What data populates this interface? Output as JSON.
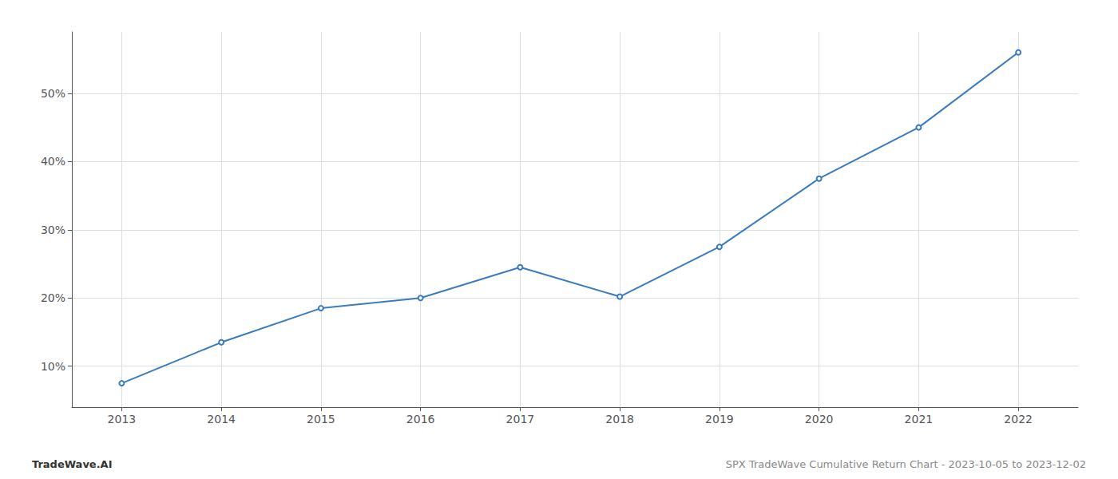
{
  "chart_data": {
    "type": "line",
    "x": [
      2013,
      2014,
      2015,
      2016,
      2017,
      2018,
      2019,
      2020,
      2021,
      2022
    ],
    "values": [
      7.5,
      13.5,
      18.5,
      20.0,
      24.5,
      20.2,
      27.5,
      37.5,
      45.0,
      56.0
    ],
    "color": "#3a7abf",
    "xlim": [
      2012.5,
      2022.6
    ],
    "xticks": [
      2013,
      2014,
      2015,
      2016,
      2017,
      2018,
      2019,
      2020,
      2021,
      2022
    ],
    "ylim": [
      4,
      59
    ],
    "yticks": [
      {
        "value": 10,
        "label": "10%"
      },
      {
        "value": 20,
        "label": "20%"
      },
      {
        "value": 30,
        "label": "30%"
      },
      {
        "value": 40,
        "label": "40%"
      },
      {
        "value": 50,
        "label": "50%"
      }
    ],
    "grid": true,
    "annotations": [
      "TradeWave.AI",
      "SPX TradeWave Cumulative Return Chart - 2023-10-05 to 2023-12-02"
    ]
  }
}
